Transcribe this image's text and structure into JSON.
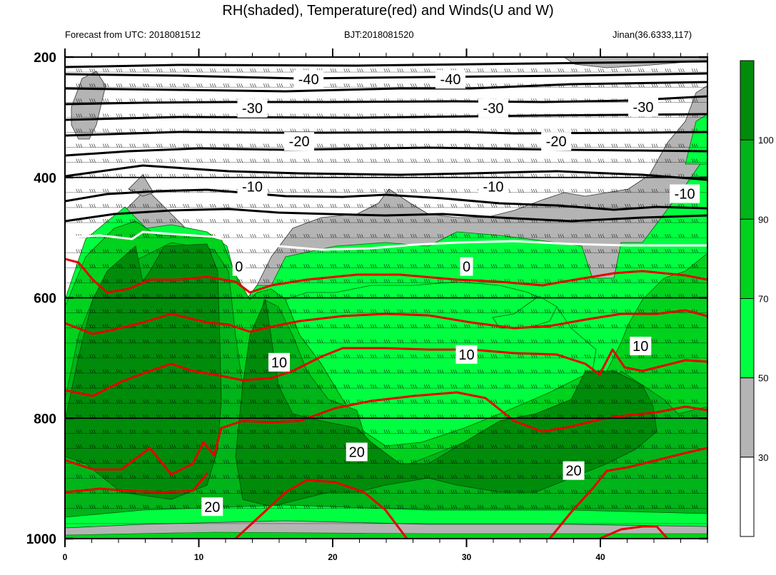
{
  "chart_data": {
    "type": "contour",
    "title": "RH(shaded), Temperature(red) and Winds(U and W)",
    "subtitle_left": "Forecast from UTC: 2018081512",
    "subtitle_center": "BJT:2018081520",
    "subtitle_right": "Jinan(36.6333,117)",
    "xlim": [
      0,
      48
    ],
    "ylim": [
      1000,
      200
    ],
    "x_ticks": [
      0,
      10,
      20,
      30,
      40
    ],
    "y_ticks": [
      200,
      400,
      600,
      800,
      1000
    ],
    "colorbar": {
      "levels": [
        30,
        50,
        70,
        90,
        100
      ],
      "labels": [
        "30",
        "50",
        "70",
        "90",
        "100"
      ],
      "colors": [
        "#ffffff",
        "#b4b4b4",
        "#00ff40",
        "#00d21e",
        "#00b419",
        "#008c0a"
      ]
    },
    "temperature_contours": [
      {
        "value": -40,
        "label": "-40",
        "color": "#000000"
      },
      {
        "value": -30,
        "label": "-30",
        "color": "#000000"
      },
      {
        "value": -20,
        "label": "-20",
        "color": "#000000"
      },
      {
        "value": -10,
        "label": "-10",
        "color": "#000000"
      },
      {
        "value": 0,
        "label": "0",
        "color": "#ffffff"
      },
      {
        "value": 10,
        "label": "10",
        "color": "#e60000"
      },
      {
        "value": 20,
        "label": "20",
        "color": "#e60000"
      }
    ],
    "contour_labels": [
      {
        "text": "-40",
        "x": 18.2,
        "p": 237
      },
      {
        "text": "-40",
        "x": 28.8,
        "p": 237
      },
      {
        "text": "-30",
        "x": 14.0,
        "p": 285
      },
      {
        "text": "-30",
        "x": 32.0,
        "p": 285
      },
      {
        "text": "-30",
        "x": 43.2,
        "p": 283
      },
      {
        "text": "-20",
        "x": 17.5,
        "p": 340
      },
      {
        "text": "-20",
        "x": 36.7,
        "p": 340
      },
      {
        "text": "-10",
        "x": 14.0,
        "p": 415
      },
      {
        "text": "-10",
        "x": 32.0,
        "p": 415
      },
      {
        "text": "-10",
        "x": 46.3,
        "p": 427
      },
      {
        "text": "0",
        "x": 13.0,
        "p": 548
      },
      {
        "text": "0",
        "x": 30.0,
        "p": 548
      },
      {
        "text": "10",
        "x": 16.0,
        "p": 707
      },
      {
        "text": "10",
        "x": 30.0,
        "p": 694
      },
      {
        "text": "10",
        "x": 43.0,
        "p": 680
      },
      {
        "text": "20",
        "x": 21.8,
        "p": 856
      },
      {
        "text": "20",
        "x": 38.0,
        "p": 887
      },
      {
        "text": "20",
        "x": 11.0,
        "p": 947
      }
    ]
  }
}
